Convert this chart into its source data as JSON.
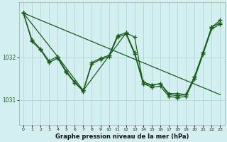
{
  "background_color": "#d4efef",
  "grid_color": "#b0d8d8",
  "line_color": "#1a5c1a",
  "xlabel": "Graphe pression niveau de la mer (hPa)",
  "xlim": [
    -0.5,
    23.5
  ],
  "ylim": [
    1030.4,
    1033.3
  ],
  "yticks": [
    1031,
    1032
  ],
  "xticks": [
    0,
    1,
    2,
    3,
    4,
    5,
    6,
    7,
    8,
    9,
    10,
    11,
    12,
    13,
    14,
    15,
    16,
    17,
    18,
    19,
    20,
    21,
    22,
    23
  ],
  "line1_x": [
    0,
    1,
    2,
    3,
    4,
    5,
    6,
    7,
    8,
    9,
    10,
    11,
    12,
    13,
    14,
    15,
    16,
    17,
    18,
    19,
    20,
    21,
    22,
    23
  ],
  "line1_y": [
    1033.05,
    1032.42,
    1032.2,
    1031.92,
    1032.02,
    1031.68,
    1031.42,
    1031.22,
    1031.88,
    1031.98,
    1032.05,
    1032.52,
    1032.58,
    1032.12,
    1031.42,
    1031.35,
    1031.38,
    1031.12,
    1031.1,
    1031.12,
    1031.55,
    1032.12,
    1032.72,
    1032.82
  ],
  "line2_x": [
    0,
    1,
    2,
    3,
    4,
    5,
    6,
    7,
    8,
    9,
    10,
    11,
    12,
    13,
    14,
    15,
    16,
    17,
    18,
    19,
    20,
    21,
    22,
    23
  ],
  "line2_y": [
    1033.05,
    1032.38,
    1032.18,
    1031.88,
    1031.98,
    1031.65,
    1031.4,
    1031.2,
    1031.85,
    1031.95,
    1032.02,
    1032.48,
    1032.55,
    1032.08,
    1031.38,
    1031.3,
    1031.32,
    1031.08,
    1031.05,
    1031.08,
    1031.5,
    1032.08,
    1032.68,
    1032.78
  ],
  "line3_x": [
    0,
    23
  ],
  "line3_y": [
    1033.05,
    1031.12
  ],
  "line4_x": [
    0,
    4,
    7,
    12,
    13,
    14,
    15,
    16,
    17,
    18,
    19,
    20,
    21,
    22,
    23
  ],
  "line4_y": [
    1033.05,
    1032.02,
    1031.22,
    1032.58,
    1032.48,
    1031.38,
    1031.35,
    1031.38,
    1031.15,
    1031.15,
    1031.12,
    1031.55,
    1032.12,
    1032.72,
    1032.88
  ]
}
